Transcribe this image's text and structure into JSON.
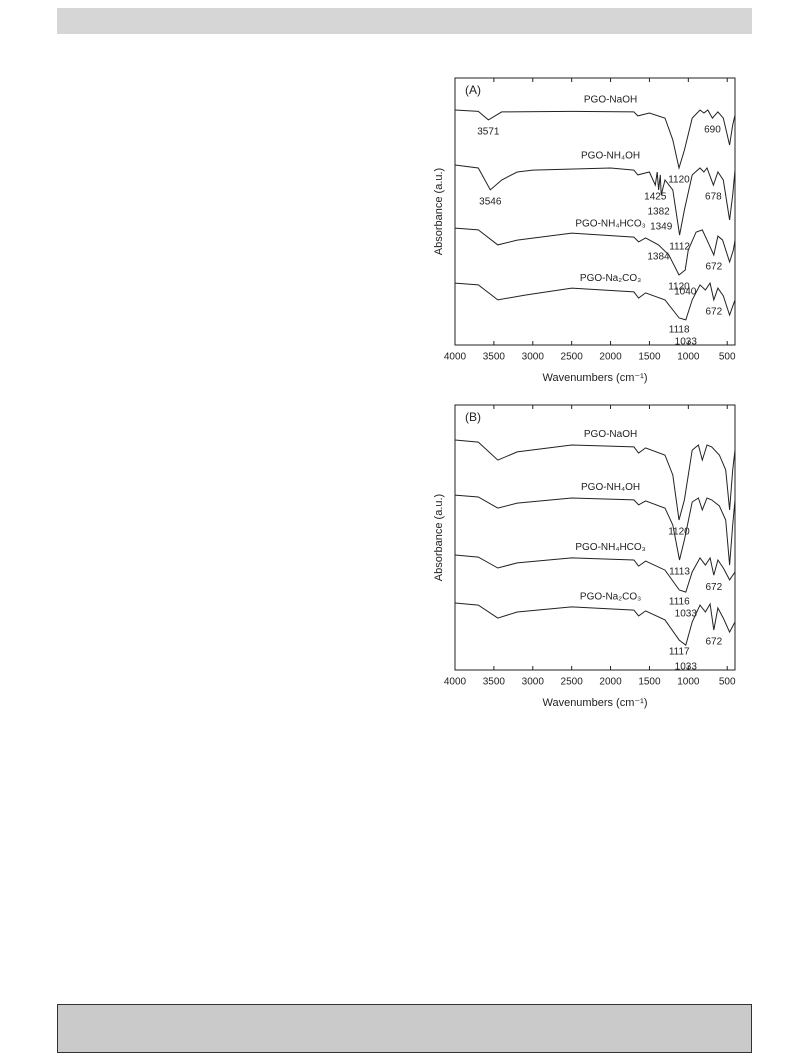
{
  "chart_data": [
    {
      "type": "line",
      "panel": "(A)",
      "xlabel": "Wavenumbers (cm⁻¹)",
      "ylabel": "Absorbance (a.u.)",
      "xlim": [
        4000,
        400
      ],
      "ylim": [
        0,
        100
      ],
      "xticks": [
        4000,
        3500,
        3000,
        2500,
        2000,
        1500,
        1000,
        500
      ],
      "series": [
        {
          "name": "PGO-NaOH",
          "color": "#222222",
          "x": [
            4000,
            3700,
            3571,
            3400,
            2500,
            1700,
            1650,
            1500,
            1300,
            1200,
            1120,
            1050,
            950,
            850,
            800,
            750,
            690,
            620,
            550,
            470,
            430,
            400
          ],
          "values": [
            88,
            87.5,
            84.3,
            87.3,
            87.5,
            87.3,
            85.8,
            86.9,
            85,
            76.8,
            66.3,
            73,
            85,
            88,
            86.9,
            88,
            85,
            87.3,
            85,
            74.9,
            82.4,
            86.1
          ],
          "annotations": [
            3571,
            1120,
            690
          ]
        },
        {
          "name": "PGO-NH₄OH",
          "color": "#222222",
          "x": [
            4000,
            3700,
            3546,
            3400,
            3200,
            3000,
            2000,
            1700,
            1650,
            1500,
            1425,
            1400,
            1382,
            1360,
            1349,
            1300,
            1200,
            1112,
            1050,
            950,
            850,
            800,
            760,
            678,
            620,
            550,
            470,
            430,
            400
          ],
          "values": [
            67.4,
            66.3,
            58.1,
            61.8,
            64.8,
            65.5,
            66.3,
            65.5,
            63.7,
            64.8,
            59.9,
            64.8,
            58.1,
            63.7,
            56.2,
            61.8,
            58.1,
            41.2,
            50.6,
            63.7,
            66.3,
            64.8,
            66.3,
            59.9,
            64.8,
            61.8,
            46.8,
            56.2,
            65.5
          ],
          "annotations": [
            3546,
            1425,
            1382,
            1349,
            1112,
            678
          ]
        },
        {
          "name": "PGO-NH₄HCO₃",
          "color": "#222222",
          "x": [
            4000,
            3700,
            3450,
            3200,
            2500,
            1700,
            1640,
            1550,
            1384,
            1250,
            1120,
            1040,
            1000,
            900,
            820,
            760,
            672,
            620,
            560,
            470,
            420,
            400
          ],
          "values": [
            43.8,
            43.1,
            37.5,
            39.3,
            41.9,
            40.4,
            38.6,
            40.1,
            37.5,
            33.7,
            26.2,
            28.1,
            35.6,
            42.3,
            43.1,
            39.3,
            33.7,
            40.8,
            39.3,
            31.1,
            35.6,
            39.3
          ],
          "annotations": [
            1384,
            1120,
            1040,
            672
          ]
        },
        {
          "name": "PGO-Na₂CO₃",
          "color": "#222222",
          "x": [
            4000,
            3700,
            3450,
            3100,
            2500,
            1700,
            1640,
            1550,
            1300,
            1118,
            1033,
            950,
            850,
            780,
            720,
            672,
            620,
            550,
            470,
            400
          ],
          "values": [
            23.2,
            22.5,
            16.9,
            18.7,
            21.3,
            19.9,
            17.6,
            19.5,
            16.9,
            10.1,
            9.4,
            16.9,
            22.5,
            20.6,
            23.2,
            16.9,
            21.3,
            18.4,
            11.2,
            16.9
          ],
          "annotations": [
            1118,
            1033,
            672
          ]
        }
      ]
    },
    {
      "type": "line",
      "panel": "(B)",
      "xlabel": "Wavenumbers (cm⁻¹)",
      "ylabel": "Absorbance (a.u.)",
      "xlim": [
        4000,
        400
      ],
      "ylim": [
        0,
        100
      ],
      "xticks": [
        4000,
        3500,
        3000,
        2500,
        2000,
        1500,
        1000,
        500
      ],
      "series": [
        {
          "name": "PGO-NaOH",
          "color": "#222222",
          "x": [
            4000,
            3700,
            3450,
            3200,
            2500,
            1700,
            1640,
            1550,
            1300,
            1200,
            1120,
            1050,
            950,
            870,
            820,
            760,
            700,
            600,
            520,
            470,
            430,
            400
          ],
          "values": [
            86.8,
            86,
            79.2,
            82.3,
            84.9,
            84.2,
            81.9,
            83.8,
            81.1,
            73.6,
            56.6,
            64.2,
            83,
            84.9,
            79.2,
            84.9,
            84.2,
            81.1,
            75.5,
            60.4,
            75.5,
            83
          ],
          "annotations": [
            1120
          ]
        },
        {
          "name": "PGO-NH₄OH",
          "color": "#222222",
          "x": [
            4000,
            3700,
            3450,
            3200,
            2500,
            1700,
            1640,
            1550,
            1300,
            1200,
            1113,
            1050,
            950,
            870,
            820,
            760,
            700,
            600,
            520,
            470,
            430,
            400
          ],
          "values": [
            66,
            65.3,
            61.1,
            63,
            64.9,
            64.2,
            62.3,
            63.8,
            61.1,
            54.7,
            41.5,
            49.1,
            63.4,
            64.9,
            60.4,
            64.9,
            64.2,
            61.9,
            56.6,
            39.6,
            54.7,
            64.2
          ],
          "annotations": [
            1113
          ]
        },
        {
          "name": "PGO-NH₄HCO₃",
          "color": "#222222",
          "x": [
            4000,
            3700,
            3450,
            3200,
            2500,
            1700,
            1640,
            1550,
            1300,
            1116,
            1033,
            950,
            850,
            780,
            720,
            672,
            620,
            550,
            470,
            400
          ],
          "values": [
            43.4,
            42.6,
            38.5,
            40.4,
            42.3,
            41.5,
            39.2,
            41.1,
            37.7,
            30.2,
            29.4,
            37,
            42.3,
            39.6,
            42.3,
            35.8,
            41.5,
            38.5,
            34,
            37
          ],
          "annotations": [
            1116,
            1033,
            672
          ]
        },
        {
          "name": "PGO-Na₂CO₃",
          "color": "#222222",
          "x": [
            4000,
            3700,
            3450,
            3200,
            2500,
            1700,
            1640,
            1550,
            1300,
            1117,
            1033,
            950,
            850,
            780,
            720,
            672,
            620,
            550,
            470,
            400
          ],
          "values": [
            25.3,
            24.5,
            19.6,
            21.9,
            23.8,
            22.6,
            20.4,
            22.3,
            18.9,
            11.3,
            9.4,
            18.1,
            24.5,
            21.9,
            24.9,
            15.1,
            23.4,
            19.6,
            14.3,
            18.1
          ],
          "annotations": [
            1117,
            1033,
            672
          ]
        }
      ]
    }
  ]
}
